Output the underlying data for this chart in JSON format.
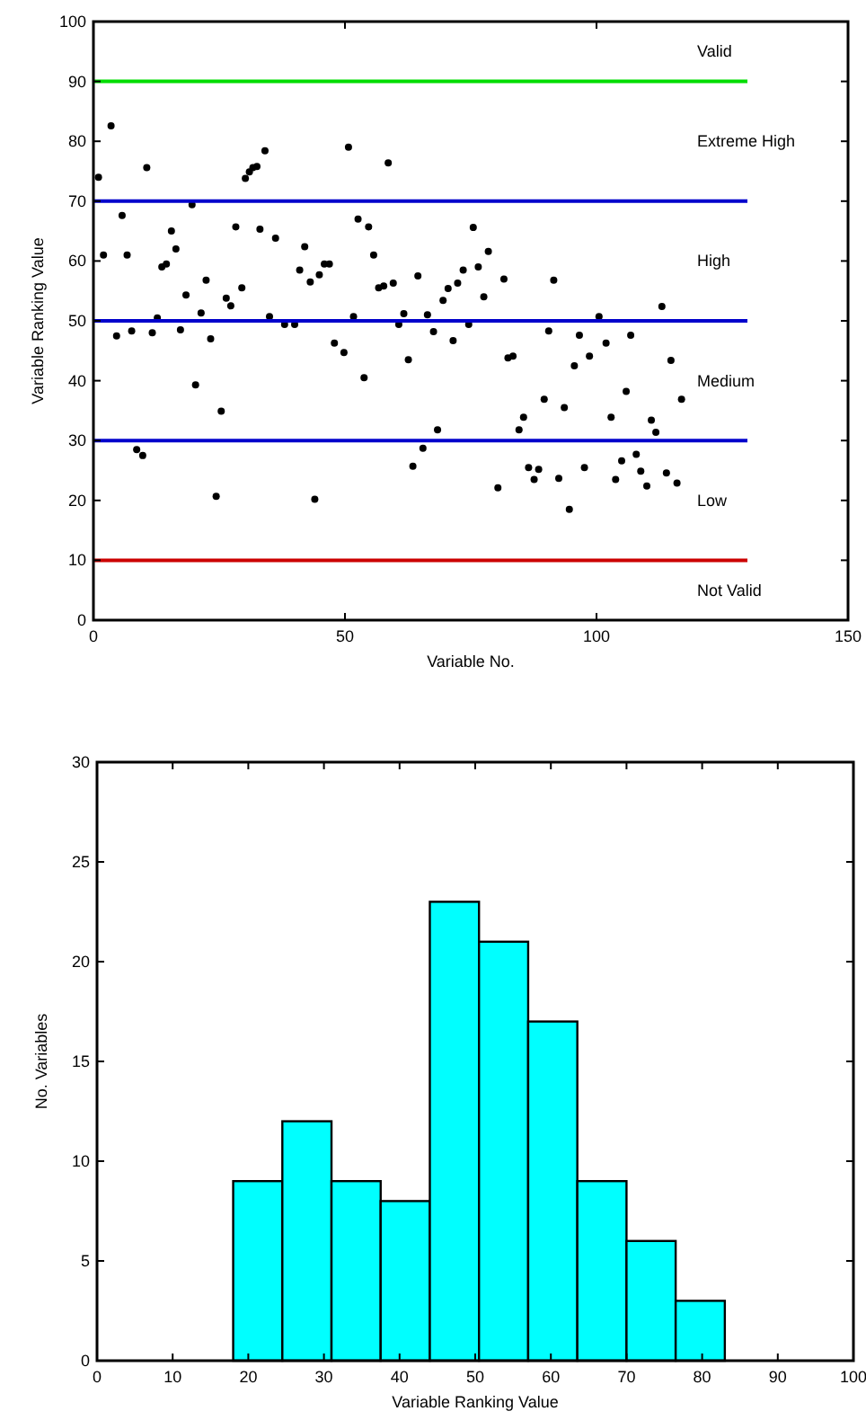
{
  "chart_data": [
    {
      "type": "scatter",
      "xlabel": "Variable No.",
      "ylabel": "Variable Ranking Value",
      "xlim": [
        0,
        150
      ],
      "ylim": [
        0,
        100
      ],
      "xticks": [
        0,
        50,
        100,
        150
      ],
      "yticks": [
        0,
        10,
        20,
        30,
        40,
        50,
        60,
        70,
        80,
        90,
        100
      ],
      "marker": "circle",
      "series": [
        {
          "color": "#000000",
          "x": [
            1,
            2,
            3.5,
            4.6,
            5.7,
            6.7,
            7.6,
            8.6,
            9.8,
            10.6,
            11.7,
            12.7,
            13.6,
            14.5,
            15.5,
            16.4,
            17.3,
            18.4,
            19.6,
            20.3,
            21.4,
            22.4,
            23.3,
            24.4,
            25.4,
            26.4,
            27.3,
            28.3,
            29.5,
            30.2,
            31,
            31.7,
            32.5,
            33.1,
            34.1,
            35,
            36.2,
            38,
            40,
            41,
            42,
            43.1,
            44,
            44.9,
            45.9,
            46.9,
            47.9,
            49.8,
            50.7,
            51.7,
            52.6,
            53.8,
            54.7,
            55.7,
            56.7,
            57.7,
            58.6,
            59.6,
            60.7,
            61.7,
            62.6,
            63.5,
            64.5,
            65.5,
            66.4,
            67.6,
            68.4,
            69.5,
            70.5,
            71.5,
            72.4,
            73.5,
            74.6,
            75.5,
            76.5,
            77.6,
            78.5,
            80.4,
            81.6,
            82.4,
            83.4,
            84.6,
            85.5,
            86.5,
            87.6,
            88.5,
            89.6,
            90.5,
            91.5,
            92.5,
            93.6,
            94.6,
            95.6,
            96.6,
            97.6,
            98.6,
            100.5,
            101.9,
            102.9,
            103.8,
            105,
            105.9,
            106.8,
            107.9,
            108.8,
            110,
            110.9,
            111.8,
            113,
            113.9,
            114.8,
            116,
            116.9
          ],
          "values": [
            74,
            61,
            82.6,
            47.5,
            67.6,
            61,
            48.3,
            28.5,
            27.5,
            75.6,
            48,
            50.5,
            59,
            59.5,
            65,
            62,
            48.5,
            54.3,
            69.4,
            39.3,
            51.3,
            56.8,
            47,
            20.7,
            34.9,
            53.8,
            52.5,
            65.7,
            55.5,
            73.8,
            74.9,
            75.6,
            75.8,
            65.3,
            78.4,
            50.7,
            63.8,
            49.4,
            49.4,
            58.5,
            62.4,
            56.5,
            20.2,
            57.7,
            59.5,
            59.5,
            46.3,
            44.7,
            79,
            50.7,
            67,
            40.5,
            65.7,
            61,
            55.5,
            55.8,
            76.4,
            56.3,
            49.4,
            51.2,
            43.5,
            25.7,
            57.5,
            28.7,
            51,
            48.2,
            31.8,
            53.4,
            55.4,
            46.7,
            56.3,
            58.5,
            49.4,
            65.6,
            59,
            54,
            61.6,
            22.1,
            57,
            43.8,
            44.1,
            31.8,
            33.9,
            25.5,
            23.5,
            25.2,
            36.9,
            48.3,
            56.8,
            23.7,
            35.5,
            18.5,
            42.5,
            47.6,
            25.5,
            44.1,
            50.7,
            46.3,
            33.9,
            23.5,
            26.6,
            38.2,
            47.6,
            27.7,
            24.9,
            22.4,
            33.4,
            31.4,
            52.4,
            24.6,
            43.4,
            22.9,
            36.9
          ]
        },
        {
          "type": "line",
          "color": "#00dd00",
          "x": [
            0,
            130
          ],
          "values": [
            90,
            90
          ],
          "marker": "none"
        },
        {
          "type": "line",
          "color": "#0000cc",
          "x": [
            0,
            130
          ],
          "values": [
            70,
            70
          ],
          "marker": "none"
        },
        {
          "type": "line",
          "color": "#0000cc",
          "x": [
            0,
            130
          ],
          "values": [
            50,
            50
          ],
          "marker": "none"
        },
        {
          "type": "line",
          "color": "#0000cc",
          "x": [
            0,
            130
          ],
          "values": [
            30,
            30
          ],
          "marker": "none"
        },
        {
          "type": "line",
          "color": "#cc0000",
          "x": [
            0,
            130
          ],
          "values": [
            10,
            10
          ],
          "marker": "none"
        }
      ],
      "annotations": [
        "Valid",
        "Extreme High",
        "High",
        "Medium",
        "Low",
        "Not Valid"
      ]
    },
    {
      "type": "histogram",
      "xlabel": "Variable Ranking Value",
      "ylabel": "No. Variables",
      "bins": [
        18,
        24.5,
        31,
        37.5,
        44,
        50.5,
        57,
        63.5,
        70,
        76.5,
        83
      ],
      "values": [
        9,
        12,
        9,
        8,
        23,
        21,
        17,
        9,
        6,
        3
      ],
      "color": "#00ffff",
      "xlim": [
        0,
        100
      ],
      "ylim": [
        0,
        30
      ],
      "xticks": [
        0,
        10,
        20,
        30,
        40,
        50,
        60,
        70,
        80,
        90,
        100
      ],
      "yticks": [
        0,
        5,
        10,
        15,
        20,
        25,
        30
      ]
    }
  ]
}
